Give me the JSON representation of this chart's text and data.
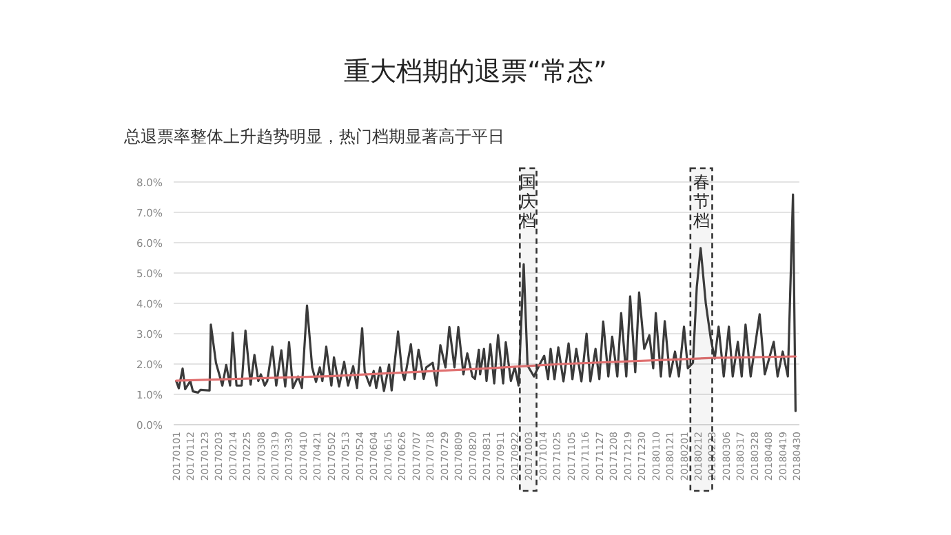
{
  "chart_data": {
    "type": "line",
    "title": "重大档期的退票“常态”",
    "subtitle": "总退票率整体上升趋势明显，热门档期显著高于平日",
    "ylim": [
      0,
      8
    ],
    "yticks": [
      {
        "value": 0,
        "label": "0.0%"
      },
      {
        "value": 1,
        "label": "1.0%"
      },
      {
        "value": 2,
        "label": "2.0%"
      },
      {
        "value": 3,
        "label": "3.0%"
      },
      {
        "value": 4,
        "label": "4.0%"
      },
      {
        "value": 5,
        "label": "5.0%"
      },
      {
        "value": 6,
        "label": "6.0%"
      },
      {
        "value": 7,
        "label": "7.0%"
      },
      {
        "value": 8,
        "label": "8.0%"
      }
    ],
    "xlim": [
      "2016-12-30",
      "2018-05-02"
    ],
    "xticks": [
      {
        "value": "2017-01-01",
        "label": "20170101"
      },
      {
        "value": "2017-01-12",
        "label": "20170112"
      },
      {
        "value": "2017-01-23",
        "label": "20170123"
      },
      {
        "value": "2017-02-03",
        "label": "20170203"
      },
      {
        "value": "2017-02-14",
        "label": "20170214"
      },
      {
        "value": "2017-02-25",
        "label": "20170225"
      },
      {
        "value": "2017-03-08",
        "label": "20170308"
      },
      {
        "value": "2017-03-19",
        "label": "20170319"
      },
      {
        "value": "2017-03-30",
        "label": "20170330"
      },
      {
        "value": "2017-04-10",
        "label": "20170410"
      },
      {
        "value": "2017-04-21",
        "label": "20170421"
      },
      {
        "value": "2017-05-02",
        "label": "20170502"
      },
      {
        "value": "2017-05-13",
        "label": "20170513"
      },
      {
        "value": "2017-05-24",
        "label": "20170524"
      },
      {
        "value": "2017-06-04",
        "label": "20170604"
      },
      {
        "value": "2017-06-15",
        "label": "20170615"
      },
      {
        "value": "2017-06-26",
        "label": "20170626"
      },
      {
        "value": "2017-07-07",
        "label": "20170707"
      },
      {
        "value": "2017-07-18",
        "label": "20170718"
      },
      {
        "value": "2017-07-29",
        "label": "20170729"
      },
      {
        "value": "2017-08-09",
        "label": "20170809"
      },
      {
        "value": "2017-08-20",
        "label": "20170820"
      },
      {
        "value": "2017-08-31",
        "label": "20170831"
      },
      {
        "value": "2017-09-11",
        "label": "20170911"
      },
      {
        "value": "2017-09-22",
        "label": "20170922"
      },
      {
        "value": "2017-10-03",
        "label": "20171003"
      },
      {
        "value": "2017-10-14",
        "label": "20171014"
      },
      {
        "value": "2017-10-25",
        "label": "20171025"
      },
      {
        "value": "2017-11-05",
        "label": "20171105"
      },
      {
        "value": "2017-11-16",
        "label": "20171116"
      },
      {
        "value": "2017-11-27",
        "label": "20171127"
      },
      {
        "value": "2017-12-08",
        "label": "20171208"
      },
      {
        "value": "2017-12-19",
        "label": "20171219"
      },
      {
        "value": "2017-12-30",
        "label": "20171230"
      },
      {
        "value": "2018-01-10",
        "label": "20180110"
      },
      {
        "value": "2018-01-21",
        "label": "20180121"
      },
      {
        "value": "2018-02-01",
        "label": "20180201"
      },
      {
        "value": "2018-02-12",
        "label": "20180212"
      },
      {
        "value": "2018-02-23",
        "label": "20180223"
      },
      {
        "value": "2018-03-06",
        "label": "20180306"
      },
      {
        "value": "2018-03-17",
        "label": "20180317"
      },
      {
        "value": "2018-03-28",
        "label": "20180328"
      },
      {
        "value": "2018-04-08",
        "label": "20180408"
      },
      {
        "value": "2018-04-19",
        "label": "20180419"
      },
      {
        "value": "2018-04-30",
        "label": "20180430"
      }
    ],
    "grid": "y",
    "bands": [
      {
        "axis": "x",
        "from": "2017-09-26",
        "to": "2017-10-09",
        "label": "国庆档",
        "color": "#333333"
      },
      {
        "axis": "x",
        "from": "2018-02-06",
        "to": "2018-02-23",
        "label": "春节档",
        "color": "#333333"
      }
    ],
    "series": [
      {
        "color": "#3a3a3a",
        "x": [
          "2017-01-01",
          "2017-01-03",
          "2017-01-06",
          "2017-01-08",
          "2017-01-12",
          "2017-01-14",
          "2017-01-18",
          "2017-01-20",
          "2017-01-27",
          "2017-01-28",
          "2017-02-01",
          "2017-02-06",
          "2017-02-09",
          "2017-02-12",
          "2017-02-14",
          "2017-02-17",
          "2017-02-21",
          "2017-02-24",
          "2017-02-28",
          "2017-03-03",
          "2017-03-06",
          "2017-03-08",
          "2017-03-11",
          "2017-03-13",
          "2017-03-17",
          "2017-03-20",
          "2017-03-24",
          "2017-03-27",
          "2017-03-30",
          "2017-04-02",
          "2017-04-06",
          "2017-04-09",
          "2017-04-13",
          "2017-04-17",
          "2017-04-20",
          "2017-04-23",
          "2017-04-25",
          "2017-04-28",
          "2017-05-02",
          "2017-05-04",
          "2017-05-08",
          "2017-05-12",
          "2017-05-15",
          "2017-05-19",
          "2017-05-22",
          "2017-05-26",
          "2017-05-28",
          "2017-06-01",
          "2017-06-04",
          "2017-06-06",
          "2017-06-09",
          "2017-06-12",
          "2017-06-16",
          "2017-06-18",
          "2017-06-23",
          "2017-06-26",
          "2017-06-28",
          "2017-07-03",
          "2017-07-06",
          "2017-07-09",
          "2017-07-13",
          "2017-07-15",
          "2017-07-20",
          "2017-07-23",
          "2017-07-26",
          "2017-07-30",
          "2017-08-02",
          "2017-08-06",
          "2017-08-09",
          "2017-08-13",
          "2017-08-16",
          "2017-08-20",
          "2017-08-22",
          "2017-08-25",
          "2017-08-26",
          "2017-08-29",
          "2017-08-31",
          "2017-09-03",
          "2017-09-06",
          "2017-09-09",
          "2017-09-13",
          "2017-09-15",
          "2017-09-19",
          "2017-09-22",
          "2017-09-25",
          "2017-09-29",
          "2017-10-02",
          "2017-10-07",
          "2017-10-11",
          "2017-10-15",
          "2017-10-18",
          "2017-10-20",
          "2017-10-23",
          "2017-10-26",
          "2017-10-30",
          "2017-11-03",
          "2017-11-06",
          "2017-11-09",
          "2017-11-13",
          "2017-11-17",
          "2017-11-20",
          "2017-11-24",
          "2017-11-27",
          "2017-11-30",
          "2017-12-04",
          "2017-12-07",
          "2017-12-11",
          "2017-12-14",
          "2017-12-18",
          "2017-12-21",
          "2017-12-25",
          "2017-12-28",
          "2018-01-01",
          "2018-01-05",
          "2018-01-08",
          "2018-01-10",
          "2018-01-14",
          "2018-01-17",
          "2018-01-21",
          "2018-01-25",
          "2018-01-28",
          "2018-02-01",
          "2018-02-04",
          "2018-02-08",
          "2018-02-11",
          "2018-02-14",
          "2018-02-18",
          "2018-02-22",
          "2018-02-25",
          "2018-02-28",
          "2018-03-04",
          "2018-03-08",
          "2018-03-11",
          "2018-03-15",
          "2018-03-18",
          "2018-03-21",
          "2018-03-25",
          "2018-04-01",
          "2018-04-05",
          "2018-04-12",
          "2018-04-15",
          "2018-04-19",
          "2018-04-23",
          "2018-04-27",
          "2018-04-29"
        ],
        "values": [
          1.44,
          1.2,
          1.85,
          1.17,
          1.44,
          1.1,
          1.06,
          1.15,
          1.13,
          3.3,
          2.04,
          1.29,
          1.97,
          1.29,
          3.03,
          1.29,
          1.29,
          3.1,
          1.32,
          2.3,
          1.44,
          1.66,
          1.29,
          1.44,
          2.57,
          1.29,
          2.45,
          1.26,
          2.72,
          1.21,
          1.59,
          1.21,
          3.93,
          1.89,
          1.41,
          1.89,
          1.44,
          2.57,
          1.29,
          2.22,
          1.26,
          2.07,
          1.29,
          1.93,
          1.21,
          3.18,
          1.75,
          1.29,
          1.77,
          1.21,
          1.89,
          1.11,
          1.98,
          1.13,
          3.07,
          1.77,
          1.47,
          2.65,
          1.51,
          2.47,
          1.51,
          1.89,
          2.04,
          1.29,
          2.62,
          1.89,
          3.22,
          1.89,
          3.22,
          1.66,
          2.35,
          1.59,
          1.51,
          2.47,
          1.66,
          2.5,
          1.44,
          2.65,
          1.36,
          2.95,
          1.36,
          2.72,
          1.44,
          1.9,
          1.29,
          5.29,
          1.95,
          1.59,
          1.95,
          2.27,
          1.5,
          2.5,
          1.5,
          2.55,
          1.43,
          2.68,
          1.5,
          2.5,
          1.43,
          3.0,
          1.43,
          2.5,
          1.5,
          3.4,
          1.59,
          2.9,
          1.59,
          3.68,
          1.59,
          4.23,
          1.73,
          4.36,
          2.5,
          2.95,
          1.86,
          3.68,
          1.59,
          3.41,
          1.59,
          2.41,
          1.59,
          3.23,
          1.86,
          2.04,
          4.55,
          5.82,
          4.0,
          2.8,
          2.18,
          3.23,
          1.59,
          3.23,
          1.59,
          2.73,
          1.59,
          3.3,
          1.59,
          3.64,
          1.66,
          2.73,
          1.59,
          2.41,
          1.59,
          7.59,
          0.45
        ]
      },
      {
        "color": "#e07070",
        "x": [
          "2017-01-01",
          "2017-05-01",
          "2017-08-29",
          "2017-10-28",
          "2018-02-24",
          "2018-04-29"
        ],
        "values": [
          1.45,
          1.6,
          1.85,
          2.0,
          2.2,
          2.25
        ]
      }
    ]
  }
}
